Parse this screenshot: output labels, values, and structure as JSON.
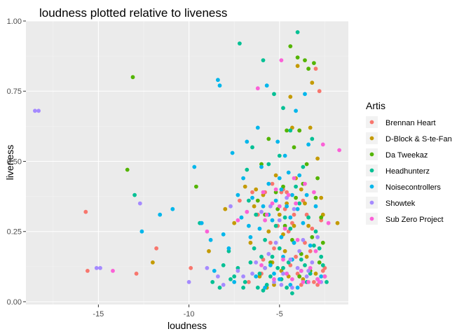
{
  "chart_data": {
    "type": "scatter",
    "title": "loudness plotted relative to liveness",
    "xlabel": "loudness",
    "ylabel": "liveness",
    "xlim": [
      -19.0,
      -1.2
    ],
    "ylim": [
      -0.01,
      1.0
    ],
    "xticks": [
      -15,
      -10,
      -5
    ],
    "yticks": [
      0.0,
      0.25,
      0.5,
      0.75,
      1.0
    ],
    "ytick_labels": [
      "0.00",
      "0.25",
      "0.50",
      "0.75",
      "1.00"
    ],
    "xtick_labels": [
      "-15",
      "-10",
      "-5"
    ],
    "grid": true,
    "legend": {
      "title": "Artis",
      "placement": "right"
    },
    "colors": {
      "panel": "#ebebeb",
      "grid_major": "#ffffff",
      "grid_minor": "#f4f4f4"
    },
    "series": [
      {
        "name": "Brennan Heart",
        "color": "#F8766D",
        "points": [
          [
            -15.7,
            0.32
          ],
          [
            -15.6,
            0.11
          ],
          [
            -12.9,
            0.1
          ],
          [
            -11.8,
            0.19
          ],
          [
            -9.9,
            0.12
          ],
          [
            -7.2,
            0.36
          ],
          [
            -6.5,
            0.39
          ],
          [
            -6.2,
            0.31
          ],
          [
            -5.9,
            0.15
          ],
          [
            -5.8,
            0.39
          ],
          [
            -5.4,
            0.42
          ],
          [
            -5.1,
            0.27
          ],
          [
            -4.9,
            0.39
          ],
          [
            -4.8,
            0.4
          ],
          [
            -4.7,
            0.33
          ],
          [
            -4.6,
            0.39
          ],
          [
            -4.4,
            0.13
          ],
          [
            -4.3,
            0.28
          ],
          [
            -4.2,
            0.31
          ],
          [
            -4.1,
            0.16
          ],
          [
            -3.9,
            0.09
          ],
          [
            -3.7,
            0.36
          ],
          [
            -3.5,
            0.31
          ],
          [
            -3.3,
            0.18
          ],
          [
            -3.1,
            0.07
          ],
          [
            -3.0,
            0.83
          ],
          [
            -2.8,
            0.75
          ],
          [
            -2.7,
            0.29
          ],
          [
            -2.6,
            0.11
          ],
          [
            -2.5,
            0.12
          ],
          [
            -5.5,
            0.21
          ],
          [
            -6.0,
            0.1
          ],
          [
            -3.8,
            0.06
          ],
          [
            -4.5,
            0.25
          ],
          [
            -2.9,
            0.06
          ],
          [
            -5.3,
            0.19
          ],
          [
            -6.7,
            0.07
          ],
          [
            -3.6,
            0.21
          ],
          [
            -4.0,
            0.1
          ],
          [
            -3.2,
            0.26
          ]
        ]
      },
      {
        "name": "D-Block & S-te-Fan",
        "color": "#C49A00",
        "points": [
          [
            -12.0,
            0.14
          ],
          [
            -8.9,
            0.18
          ],
          [
            -8.0,
            0.33
          ],
          [
            -7.5,
            0.28
          ],
          [
            -6.9,
            0.41
          ],
          [
            -6.6,
            0.21
          ],
          [
            -6.3,
            0.4
          ],
          [
            -5.8,
            0.12
          ],
          [
            -5.6,
            0.25
          ],
          [
            -5.4,
            0.14
          ],
          [
            -5.2,
            0.45
          ],
          [
            -5.0,
            0.31
          ],
          [
            -4.8,
            0.24
          ],
          [
            -4.6,
            0.35
          ],
          [
            -4.4,
            0.73
          ],
          [
            -4.3,
            0.62
          ],
          [
            -4.1,
            0.44
          ],
          [
            -4.0,
            0.84
          ],
          [
            -3.9,
            0.61
          ],
          [
            -3.7,
            0.08
          ],
          [
            -3.6,
            0.35
          ],
          [
            -3.4,
            0.27
          ],
          [
            -3.2,
            0.78
          ],
          [
            -3.0,
            0.1
          ],
          [
            -2.7,
            0.37
          ],
          [
            -2.6,
            0.31
          ],
          [
            -1.8,
            0.28
          ],
          [
            -4.9,
            0.11
          ],
          [
            -5.7,
            0.05
          ],
          [
            -6.1,
            0.09
          ],
          [
            -3.5,
            0.16
          ],
          [
            -2.9,
            0.51
          ],
          [
            -4.7,
            0.18
          ],
          [
            -3.8,
            0.4
          ],
          [
            -5.3,
            0.06
          ],
          [
            -4.2,
            0.27
          ],
          [
            -3.3,
            0.62
          ],
          [
            -6.4,
            0.34
          ],
          [
            -5.9,
            0.38
          ],
          [
            -4.5,
            0.09
          ]
        ]
      },
      {
        "name": "Da Tweekaz",
        "color": "#53B400",
        "points": [
          [
            -13.4,
            0.47
          ],
          [
            -13.1,
            0.8
          ],
          [
            -9.6,
            0.41
          ],
          [
            -6.0,
            0.49
          ],
          [
            -5.6,
            0.58
          ],
          [
            -5.1,
            0.33
          ],
          [
            -4.8,
            0.41
          ],
          [
            -4.6,
            0.61
          ],
          [
            -4.4,
            0.91
          ],
          [
            -4.2,
            0.55
          ],
          [
            -4.1,
            0.37
          ],
          [
            -4.0,
            0.87
          ],
          [
            -3.9,
            0.61
          ],
          [
            -3.8,
            0.17
          ],
          [
            -3.7,
            0.42
          ],
          [
            -3.6,
            0.86
          ],
          [
            -3.5,
            0.49
          ],
          [
            -3.4,
            0.83
          ],
          [
            -3.2,
            0.23
          ],
          [
            -3.1,
            0.85
          ],
          [
            -3.0,
            0.37
          ],
          [
            -2.8,
            0.14
          ],
          [
            -2.7,
            0.3
          ],
          [
            -2.6,
            0.21
          ],
          [
            -2.5,
            0.09
          ],
          [
            -5.5,
            0.14
          ],
          [
            -4.9,
            0.08
          ],
          [
            -5.8,
            0.31
          ],
          [
            -4.3,
            0.22
          ],
          [
            -3.3,
            0.11
          ],
          [
            -5.2,
            0.39
          ],
          [
            -6.2,
            0.36
          ],
          [
            -4.7,
            0.27
          ],
          [
            -3.9,
            0.09
          ],
          [
            -2.9,
            0.44
          ]
        ]
      },
      {
        "name": "Headhunterz",
        "color": "#00C094",
        "points": [
          [
            -13.0,
            0.38
          ],
          [
            -9.4,
            0.28
          ],
          [
            -8.7,
            0.07
          ],
          [
            -8.3,
            0.05
          ],
          [
            -7.8,
            0.18
          ],
          [
            -7.5,
            0.09
          ],
          [
            -7.2,
            0.92
          ],
          [
            -7.0,
            0.05
          ],
          [
            -6.8,
            0.47
          ],
          [
            -6.6,
            0.14
          ],
          [
            -6.5,
            0.55
          ],
          [
            -6.3,
            0.31
          ],
          [
            -6.1,
            0.1
          ],
          [
            -5.9,
            0.86
          ],
          [
            -5.8,
            0.22
          ],
          [
            -5.6,
            0.49
          ],
          [
            -5.4,
            0.16
          ],
          [
            -5.3,
            0.74
          ],
          [
            -5.1,
            0.12
          ],
          [
            -5.0,
            0.52
          ],
          [
            -4.9,
            0.08
          ],
          [
            -4.8,
            0.69
          ],
          [
            -4.7,
            0.3
          ],
          [
            -4.5,
            0.14
          ],
          [
            -4.4,
            0.61
          ],
          [
            -4.2,
            0.21
          ],
          [
            -4.0,
            0.96
          ],
          [
            -3.9,
            0.35
          ],
          [
            -3.7,
            0.48
          ],
          [
            -3.6,
            0.13
          ],
          [
            -3.4,
            0.3
          ],
          [
            -3.2,
            0.58
          ],
          [
            -3.0,
            0.25
          ],
          [
            -2.8,
            0.19
          ],
          [
            -2.6,
            0.13
          ],
          [
            -2.4,
            0.07
          ],
          [
            -6.9,
            0.07
          ],
          [
            -7.3,
            0.12
          ],
          [
            -5.7,
            0.06
          ],
          [
            -6.4,
            0.19
          ],
          [
            -4.6,
            0.05
          ],
          [
            -3.8,
            0.15
          ],
          [
            -3.3,
            0.1
          ],
          [
            -5.2,
            0.27
          ],
          [
            -4.1,
            0.41
          ],
          [
            -6.7,
            0.36
          ],
          [
            -5.5,
            0.09
          ],
          [
            -2.9,
            0.08
          ],
          [
            -4.3,
            0.03
          ],
          [
            -5.9,
            0.04
          ],
          [
            -6.0,
            0.16
          ],
          [
            -7.7,
            0.08
          ],
          [
            -8.1,
            0.13
          ],
          [
            -4.8,
            0.12
          ],
          [
            -3.5,
            0.07
          ],
          [
            -2.7,
            0.16
          ],
          [
            -6.2,
            0.05
          ],
          [
            -5.0,
            0.19
          ],
          [
            -4.4,
            0.26
          ],
          [
            -3.1,
            0.2
          ]
        ]
      },
      {
        "name": "Noisecontrollers",
        "color": "#00B6EB",
        "points": [
          [
            -12.6,
            0.25
          ],
          [
            -11.6,
            0.31
          ],
          [
            -10.9,
            0.33
          ],
          [
            -9.7,
            0.48
          ],
          [
            -9.3,
            0.28
          ],
          [
            -8.8,
            0.22
          ],
          [
            -8.4,
            0.79
          ],
          [
            -8.3,
            0.77
          ],
          [
            -8.1,
            0.24
          ],
          [
            -7.8,
            0.19
          ],
          [
            -7.6,
            0.53
          ],
          [
            -7.3,
            0.38
          ],
          [
            -7.0,
            0.44
          ],
          [
            -6.8,
            0.57
          ],
          [
            -6.7,
            0.27
          ],
          [
            -6.5,
            0.37
          ],
          [
            -6.2,
            0.62
          ],
          [
            -6.0,
            0.48
          ],
          [
            -5.9,
            0.34
          ],
          [
            -5.7,
            0.77
          ],
          [
            -5.6,
            0.42
          ],
          [
            -5.4,
            0.29
          ],
          [
            -5.2,
            0.36
          ],
          [
            -5.1,
            0.57
          ],
          [
            -5.0,
            0.44
          ],
          [
            -4.9,
            0.4
          ],
          [
            -4.8,
            0.16
          ],
          [
            -4.7,
            0.52
          ],
          [
            -4.6,
            0.34
          ],
          [
            -4.5,
            0.46
          ],
          [
            -4.4,
            0.3
          ],
          [
            -4.3,
            0.38
          ],
          [
            -4.2,
            0.21
          ],
          [
            -4.1,
            0.68
          ],
          [
            -4.0,
            0.33
          ],
          [
            -3.9,
            0.45
          ],
          [
            -3.8,
            0.11
          ],
          [
            -3.6,
            0.74
          ],
          [
            -3.4,
            0.56
          ],
          [
            -3.3,
            0.2
          ],
          [
            -3.0,
            0.34
          ],
          [
            -2.7,
            0.09
          ],
          [
            -7.5,
            0.07
          ],
          [
            -6.3,
            0.09
          ],
          [
            -5.5,
            0.13
          ],
          [
            -4.9,
            0.23
          ],
          [
            -4.4,
            0.06
          ],
          [
            -3.7,
            0.28
          ],
          [
            -5.8,
            0.05
          ],
          [
            -6.6,
            0.23
          ],
          [
            -5.3,
            0.1
          ],
          [
            -7.1,
            0.3
          ],
          [
            -4.6,
            0.1
          ],
          [
            -3.5,
            0.38
          ],
          [
            -8.6,
            0.11
          ],
          [
            -5.0,
            0.08
          ],
          [
            -4.0,
            0.05
          ],
          [
            -6.1,
            0.26
          ],
          [
            -5.6,
            0.31
          ],
          [
            -4.3,
            0.15
          ]
        ]
      },
      {
        "name": "Showtek",
        "color": "#A58AFF",
        "points": [
          [
            -18.5,
            0.68
          ],
          [
            -18.3,
            0.68
          ],
          [
            -15.1,
            0.12
          ],
          [
            -14.9,
            0.12
          ],
          [
            -12.7,
            0.35
          ],
          [
            -10.0,
            0.07
          ],
          [
            -9.0,
            0.12
          ],
          [
            -8.4,
            0.09
          ],
          [
            -8.1,
            0.06
          ],
          [
            -7.7,
            0.34
          ],
          [
            -7.0,
            0.09
          ],
          [
            -6.5,
            0.1
          ],
          [
            -6.0,
            0.32
          ],
          [
            -5.8,
            0.12
          ],
          [
            -5.5,
            0.34
          ],
          [
            -5.3,
            0.07
          ],
          [
            -5.0,
            0.29
          ],
          [
            -4.8,
            0.1
          ],
          [
            -4.6,
            0.37
          ],
          [
            -4.4,
            0.15
          ],
          [
            -4.2,
            0.33
          ],
          [
            -4.0,
            0.12
          ],
          [
            -3.7,
            0.22
          ],
          [
            -3.5,
            0.09
          ],
          [
            -3.2,
            0.14
          ],
          [
            -2.9,
            0.23
          ],
          [
            -2.7,
            0.07
          ],
          [
            -4.9,
            0.06
          ],
          [
            -5.6,
            0.17
          ],
          [
            -3.9,
            0.18
          ],
          [
            -6.3,
            0.14
          ],
          [
            -4.3,
            0.05
          ],
          [
            -5.2,
            0.21
          ],
          [
            -3.4,
            0.11
          ],
          [
            -7.3,
            0.11
          ]
        ]
      },
      {
        "name": "Sub Zero Project",
        "color": "#FB61D7",
        "points": [
          [
            -14.2,
            0.11
          ],
          [
            -9.0,
            0.25
          ],
          [
            -7.3,
            0.29
          ],
          [
            -6.8,
            0.32
          ],
          [
            -6.2,
            0.76
          ],
          [
            -5.9,
            0.39
          ],
          [
            -5.7,
            0.31
          ],
          [
            -5.4,
            0.35
          ],
          [
            -5.2,
            0.4
          ],
          [
            -5.0,
            0.34
          ],
          [
            -4.9,
            0.86
          ],
          [
            -4.7,
            0.26
          ],
          [
            -4.5,
            0.38
          ],
          [
            -4.3,
            0.08
          ],
          [
            -4.2,
            0.44
          ],
          [
            -4.0,
            0.22
          ],
          [
            -3.8,
            0.11
          ],
          [
            -3.6,
            0.42
          ],
          [
            -3.4,
            0.07
          ],
          [
            -3.1,
            0.39
          ],
          [
            -2.8,
            0.07
          ],
          [
            -2.6,
            0.56
          ],
          [
            -2.5,
            0.09
          ],
          [
            -2.3,
            0.28
          ],
          [
            -1.7,
            0.54
          ],
          [
            -2.9,
            0.08
          ],
          [
            -3.3,
            0.12
          ],
          [
            -4.6,
            0.1
          ],
          [
            -5.3,
            0.08
          ],
          [
            -6.0,
            0.13
          ],
          [
            -4.1,
            0.35
          ],
          [
            -3.0,
            0.18
          ],
          [
            -5.8,
            0.29
          ],
          [
            -4.8,
            0.15
          ],
          [
            -3.7,
            0.07
          ]
        ]
      }
    ]
  }
}
